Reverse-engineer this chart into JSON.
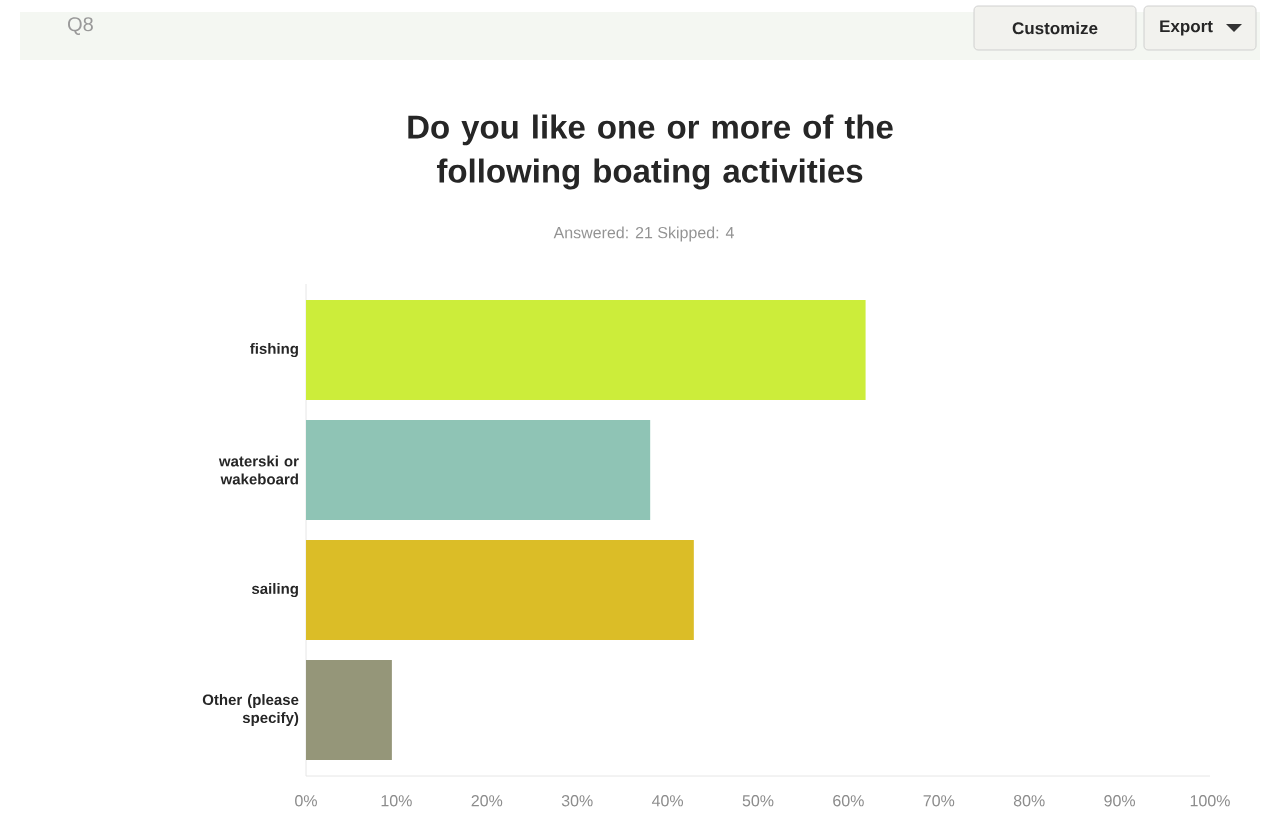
{
  "chart_data": {
    "type": "bar",
    "orientation": "horizontal",
    "title": "Do you like one or more of the following boating activities",
    "subtitle": "Answered: 21    Skipped: 4",
    "categories": [
      "fishing",
      "waterski or wakeboard",
      "sailing",
      "Other (please specify)"
    ],
    "values": [
      61.9,
      38.1,
      42.9,
      9.5
    ],
    "colors": [
      "#cced3a",
      "#8fc4b5",
      "#dbbd27",
      "#959679"
    ],
    "xlim": [
      0,
      100
    ],
    "xticks": [
      {
        "value": 0,
        "label": "0%"
      },
      {
        "value": 10,
        "label": "10%"
      },
      {
        "value": 20,
        "label": "20%"
      },
      {
        "value": 30,
        "label": "30%"
      },
      {
        "value": 40,
        "label": "40%"
      },
      {
        "value": 50,
        "label": "50%"
      },
      {
        "value": 60,
        "label": "60%"
      },
      {
        "value": 70,
        "label": "70%"
      },
      {
        "value": 80,
        "label": "80%"
      },
      {
        "value": 90,
        "label": "90%"
      },
      {
        "value": 100,
        "label": "100%"
      }
    ],
    "annotations": [
      "Q8",
      "Customize",
      "Export"
    ]
  }
}
